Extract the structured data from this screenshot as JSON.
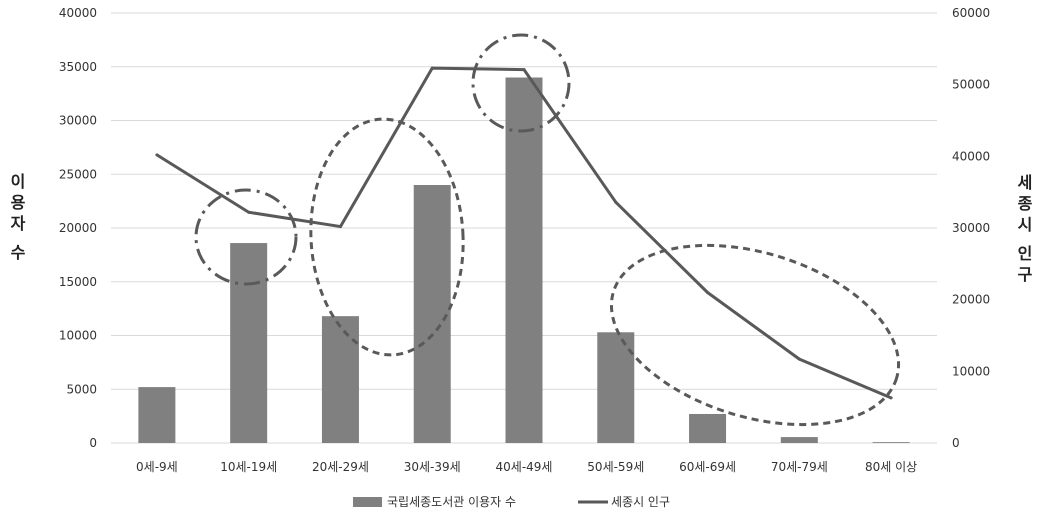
{
  "chart_data": {
    "type": "bar",
    "categories": [
      "0세-9세",
      "10세-19세",
      "20세-29세",
      "30세-39세",
      "40세-49세",
      "50세-59세",
      "60세-69세",
      "70세-79세",
      "80세 이상"
    ],
    "series": [
      {
        "name": "국립세종도서관 이용자 수",
        "type": "bar",
        "axis": "left",
        "values": [
          5200,
          18600,
          11800,
          24000,
          34000,
          10300,
          2700,
          550,
          80
        ]
      },
      {
        "name": "세종시 인구",
        "type": "line",
        "axis": "right",
        "values": [
          40200,
          32200,
          30200,
          52300,
          52100,
          33600,
          21000,
          11700,
          6300
        ]
      }
    ],
    "ylabel": "이용자 수",
    "y2label": "세종시 인구",
    "ylim": [
      0,
      40000
    ],
    "y2lim": [
      0,
      60000
    ],
    "yticks": [
      "0",
      "5000",
      "10000",
      "15000",
      "20000",
      "25000",
      "30000",
      "35000",
      "40000"
    ],
    "y2ticks": [
      "0",
      "10000",
      "20000",
      "30000",
      "40000",
      "50000",
      "60000"
    ],
    "grid": true,
    "legend": "bottom",
    "annotations": [
      {
        "shape": "ellipse",
        "style": "dash-dot",
        "around": "10세-19세"
      },
      {
        "shape": "ellipse",
        "style": "dashed",
        "around": "20세-29세"
      },
      {
        "shape": "ellipse",
        "style": "dash-dot",
        "around": "40세-49세"
      },
      {
        "shape": "ellipse",
        "style": "dashed",
        "around": "60세-69세 – 80세 이상"
      }
    ],
    "colors": {
      "bar": "#808080",
      "line": "#595959",
      "grid": "#d9d9d9",
      "annotation": "#595959"
    }
  }
}
